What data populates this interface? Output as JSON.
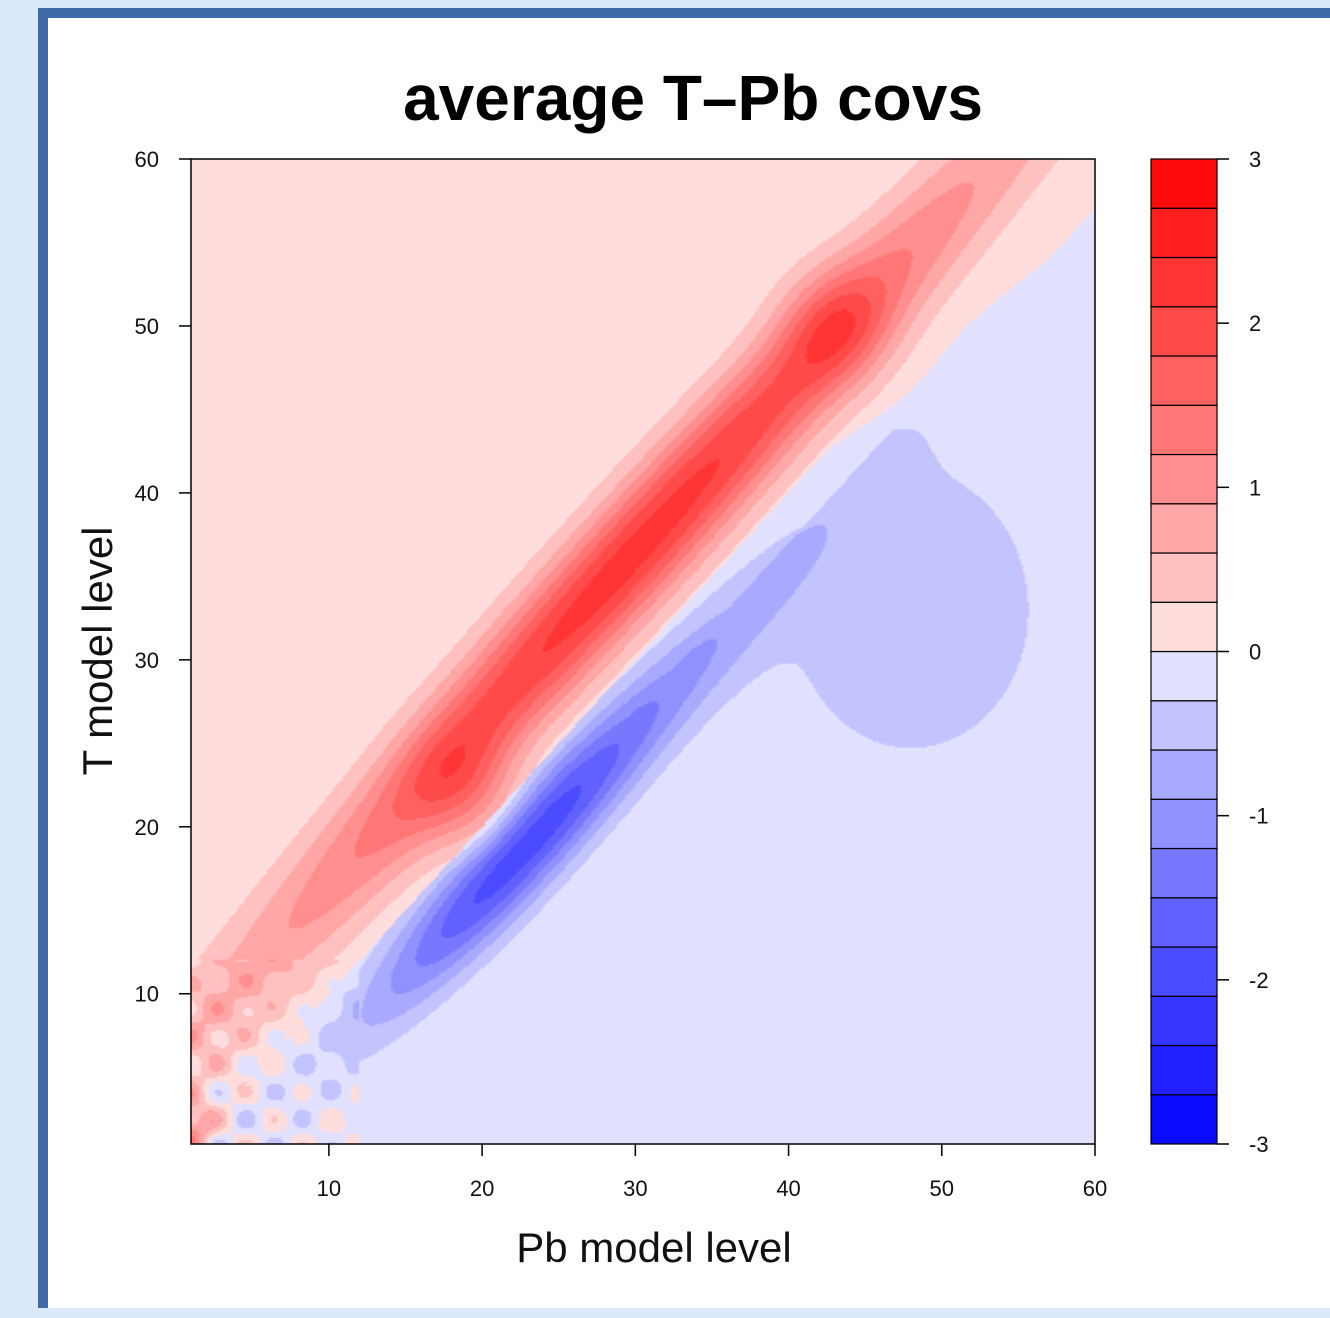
{
  "chart_data": {
    "type": "heatmap",
    "title": "average T–Pb covs",
    "xlabel": "Pb model level",
    "ylabel": "T model level",
    "xlim": [
      1,
      60
    ],
    "ylim": [
      1,
      60
    ],
    "xticks": [
      10,
      20,
      30,
      40,
      50,
      60
    ],
    "yticks": [
      10,
      20,
      30,
      40,
      50,
      60
    ],
    "colorbar": {
      "range": [
        -3,
        3
      ],
      "levels": [
        -3,
        -2.7,
        -2.4,
        -2.1,
        -1.8,
        -1.5,
        -1.2,
        -0.9,
        -0.6,
        -0.3,
        0,
        0.3,
        0.6,
        0.9,
        1.2,
        1.5,
        1.8,
        2.1,
        2.4,
        2.7,
        3
      ],
      "ticks": [
        3,
        2,
        1,
        0,
        -1,
        -2,
        -3
      ],
      "negative_color": "#0000ff",
      "neutral_color": "#f4f4ff",
      "positive_color": "#ff0000"
    },
    "features": [
      {
        "kind": "positive ridge",
        "along": "above diagonal (T level > Pb level)",
        "peak_value": 2.1,
        "near": [
          35,
          40
        ]
      },
      {
        "kind": "positive peak",
        "near": [
          43,
          50
        ],
        "value": 2.1
      },
      {
        "kind": "positive peak",
        "near": [
          19,
          22
        ],
        "value": 2.1
      },
      {
        "kind": "negative trough",
        "along": "below diagonal (Pb level > T level)",
        "peak_value": -2.4,
        "near": [
          20,
          17
        ]
      },
      {
        "kind": "positive peak",
        "near": [
          1,
          2
        ],
        "value": 3
      }
    ]
  }
}
